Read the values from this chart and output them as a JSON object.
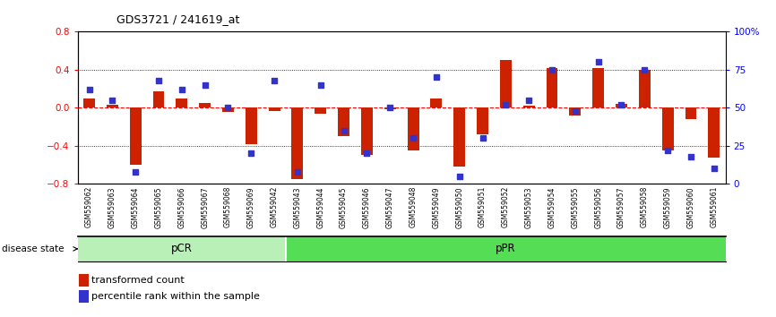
{
  "title": "GDS3721 / 241619_at",
  "samples": [
    "GSM559062",
    "GSM559063",
    "GSM559064",
    "GSM559065",
    "GSM559066",
    "GSM559067",
    "GSM559068",
    "GSM559069",
    "GSM559042",
    "GSM559043",
    "GSM559044",
    "GSM559045",
    "GSM559046",
    "GSM559047",
    "GSM559048",
    "GSM559049",
    "GSM559050",
    "GSM559051",
    "GSM559052",
    "GSM559053",
    "GSM559054",
    "GSM559055",
    "GSM559056",
    "GSM559057",
    "GSM559058",
    "GSM559059",
    "GSM559060",
    "GSM559061"
  ],
  "transformed_count": [
    0.1,
    0.03,
    -0.6,
    0.17,
    0.1,
    0.05,
    -0.04,
    -0.38,
    -0.03,
    -0.75,
    -0.06,
    -0.3,
    -0.5,
    -0.02,
    -0.45,
    0.1,
    -0.62,
    -0.28,
    0.5,
    0.02,
    0.42,
    -0.08,
    0.42,
    0.04,
    0.4,
    -0.45,
    -0.12,
    -0.52
  ],
  "percentile_rank": [
    62,
    55,
    8,
    68,
    62,
    65,
    50,
    20,
    68,
    8,
    65,
    35,
    20,
    50,
    30,
    70,
    5,
    30,
    52,
    55,
    75,
    48,
    80,
    52,
    75,
    22,
    18,
    10
  ],
  "pCR_count": 9,
  "pPR_count": 19,
  "ylim": [
    -0.8,
    0.8
  ],
  "yticks_left": [
    -0.8,
    -0.4,
    0.0,
    0.4,
    0.8
  ],
  "yticks_right": [
    0,
    25,
    50,
    75,
    100
  ],
  "bar_color": "#cc2200",
  "dot_color": "#3333cc",
  "pCR_color": "#b8f0b8",
  "pPR_color": "#55dd55",
  "label_bar": "transformed count",
  "label_dot": "percentile rank within the sample",
  "disease_state_label": "disease state",
  "pCR_label": "pCR",
  "pPR_label": "pPR",
  "background_color": "#ffffff"
}
